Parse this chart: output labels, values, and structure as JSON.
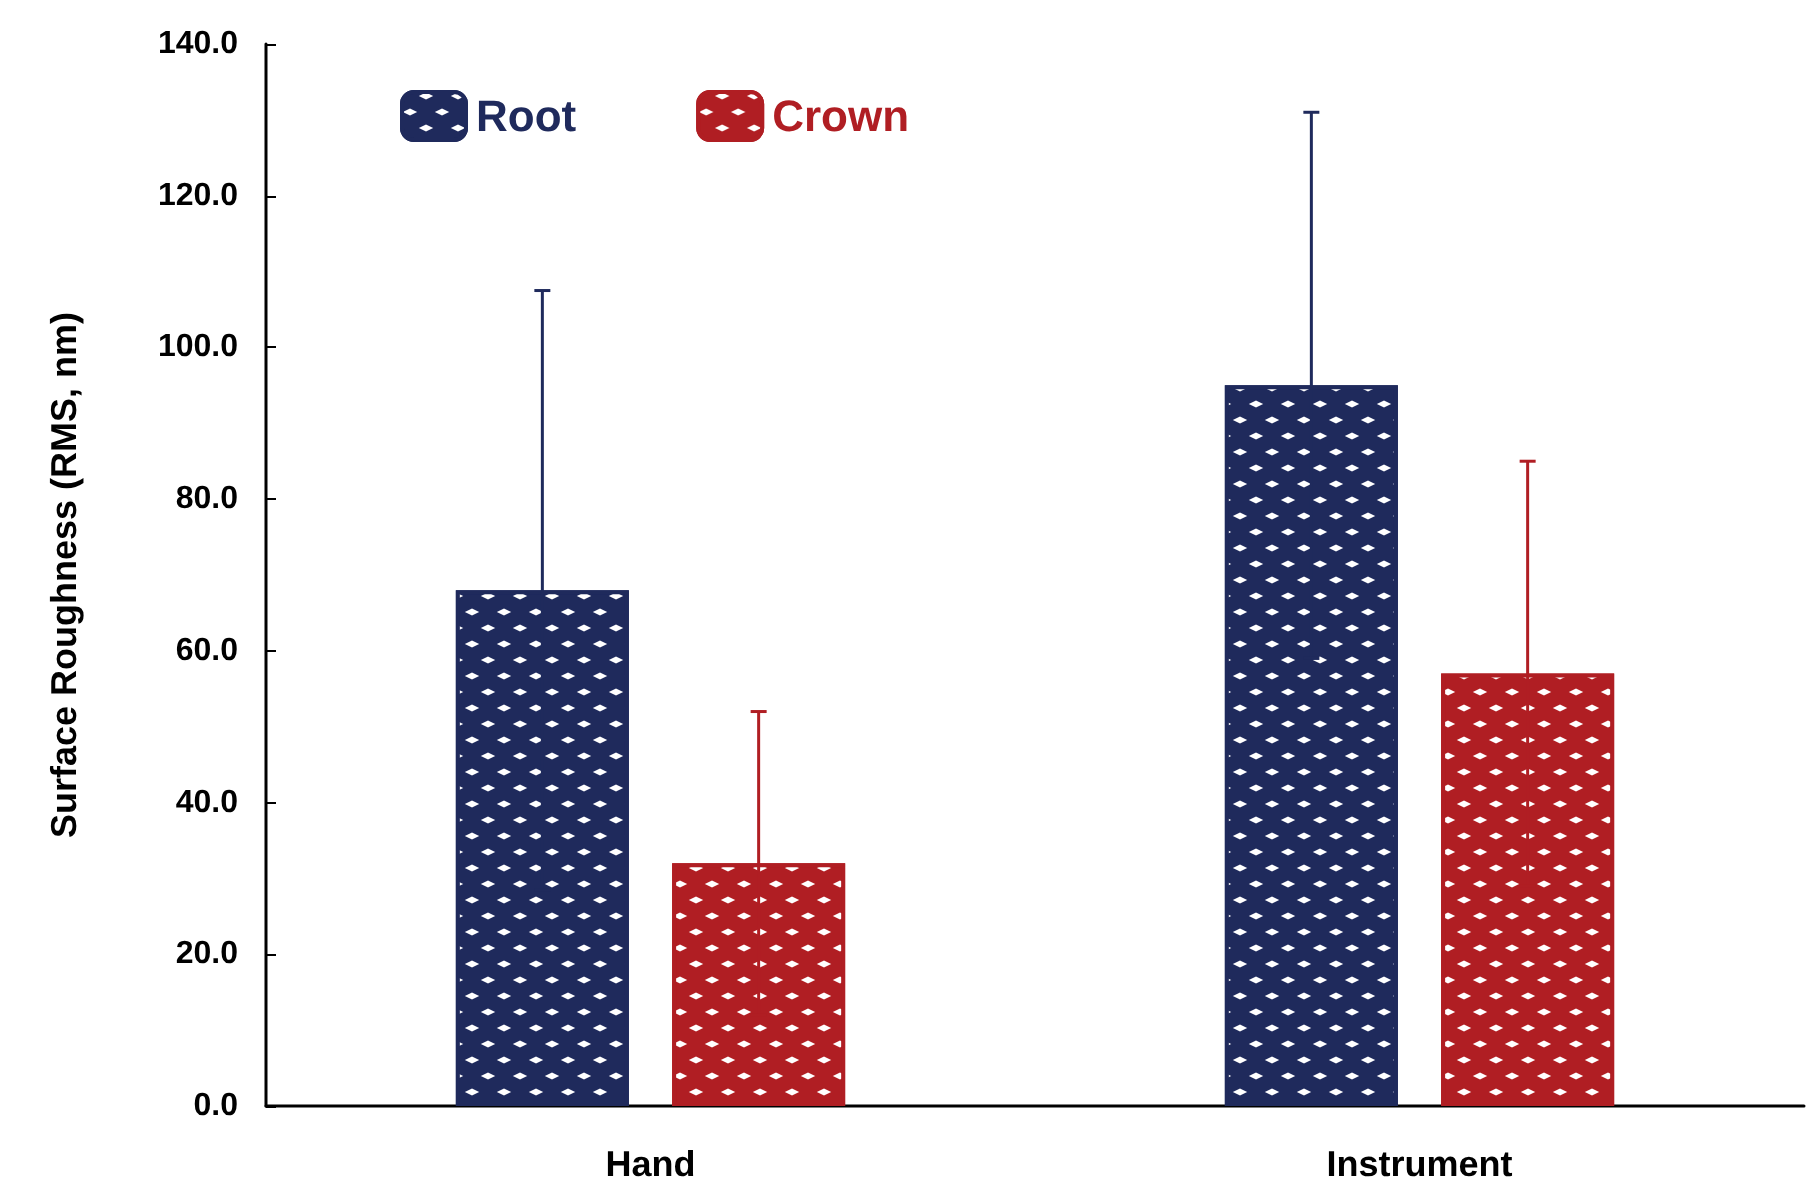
{
  "chart_data": {
    "type": "bar",
    "ylabel": "Surface Roughness (RMS, nm)",
    "categories": [
      "Hand",
      "Instrument"
    ],
    "series": [
      {
        "name": "Root",
        "color": "#1f2a5c",
        "values": [
          68,
          95
        ],
        "errors": [
          39.5,
          36
        ]
      },
      {
        "name": "Crown",
        "color": "#b01e23",
        "values": [
          32,
          57
        ],
        "errors": [
          20,
          28
        ]
      }
    ],
    "ylim": [
      0,
      140
    ],
    "yticks": [
      {
        "value": 0,
        "label": "0.0"
      },
      {
        "value": 20,
        "label": "20.0"
      },
      {
        "value": 40,
        "label": "40.0"
      },
      {
        "value": 60,
        "label": "60.0"
      },
      {
        "value": 80,
        "label": "80.0"
      },
      {
        "value": 100,
        "label": "100.0"
      },
      {
        "value": 120,
        "label": "120.0"
      },
      {
        "value": 140,
        "label": "140.0"
      }
    ],
    "grid": false,
    "legend": "top left"
  }
}
